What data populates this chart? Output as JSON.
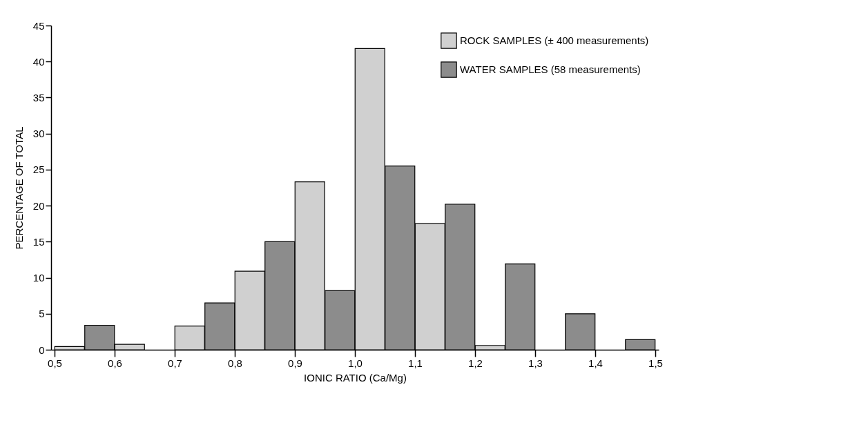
{
  "chart_data": {
    "type": "bar",
    "xlabel": "IONIC RATIO (Ca/Mg)",
    "ylabel": "PERCENTAGE OF TOTAL",
    "xlim": [
      0.5,
      1.5
    ],
    "xticks": [
      {
        "value": 0.5,
        "label": "0,5"
      },
      {
        "value": 0.6,
        "label": "0,6"
      },
      {
        "value": 0.7,
        "label": "0,7"
      },
      {
        "value": 0.8,
        "label": "0,8"
      },
      {
        "value": 0.9,
        "label": "0,9"
      },
      {
        "value": 1.0,
        "label": "1,0"
      },
      {
        "value": 1.1,
        "label": "1,1"
      },
      {
        "value": 1.2,
        "label": "1,2"
      },
      {
        "value": 1.3,
        "label": "1,3"
      },
      {
        "value": 1.4,
        "label": "1,4"
      },
      {
        "value": 1.5,
        "label": "1,5"
      }
    ],
    "ylim": [
      0,
      45
    ],
    "yticks": [
      0,
      5,
      10,
      15,
      20,
      25,
      30,
      35,
      40,
      45
    ],
    "grid": false,
    "legend": "top right",
    "series": [
      {
        "name": "ROCK  SAMPLES (± 400 measurements)",
        "color": "#d0d0d0",
        "x": [
          0.525,
          0.625,
          0.725,
          0.825,
          0.925,
          1.025,
          1.125,
          1.225
        ],
        "values": [
          0.45,
          0.75,
          3.3,
          10.9,
          23.3,
          41.8,
          17.5,
          0.6
        ]
      },
      {
        "name": "WATER  SAMPLES (58 measurements)",
        "color": "#8c8c8c",
        "x": [
          0.575,
          0.775,
          0.875,
          0.975,
          1.075,
          1.175,
          1.275,
          1.375,
          1.475
        ],
        "values": [
          3.4,
          6.5,
          15.0,
          8.2,
          25.5,
          20.2,
          11.9,
          5.0,
          1.4
        ]
      }
    ]
  }
}
